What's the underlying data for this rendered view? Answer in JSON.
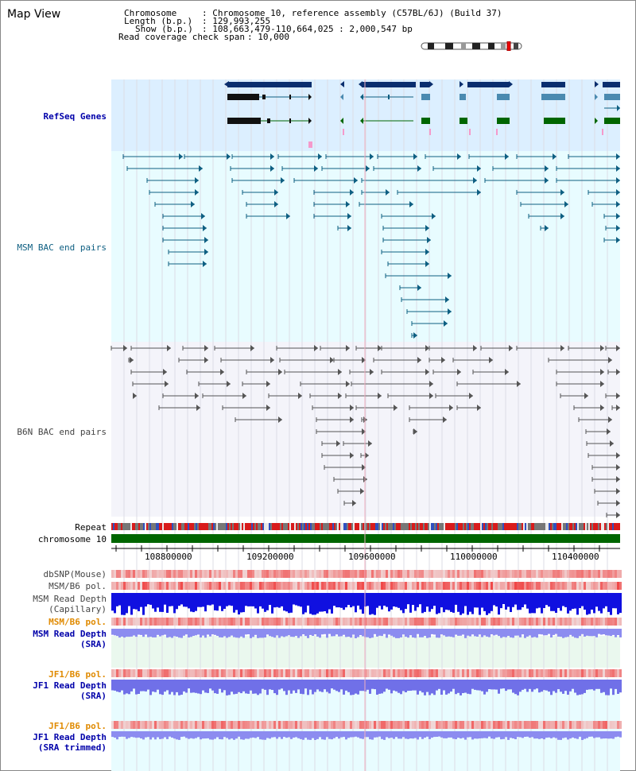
{
  "page": {
    "title": "Map View"
  },
  "info": {
    "chromosome_label": "Chromosome",
    "chromosome_value": ": Chromosome 10, reference assembly (C57BL/6J) (Build 37)",
    "length_label": "Length (b.p.)",
    "length_value": ": 129,993,255",
    "show_label": "Show (b.p.)",
    "show_value": ": 108,663,479-110,664,025 : 2,000,547 bp",
    "coverage_label": "Read coverage check span",
    "coverage_value": ": 10,000"
  },
  "tracks": {
    "refseq": "RefSeq Genes",
    "msm_bac": "MSM BAC end pairs",
    "b6n_bac": "B6N BAC end pairs",
    "repeat": "Repeat",
    "chromosome": "chromosome 10",
    "dbsnp": "dbSNP(Mouse)",
    "msm_b6_pol": "MSM/B6 pol.",
    "msm_read_depth_cap": "MSM Read Depth",
    "msm_read_depth_cap_sub": "(Capillary)",
    "msm_b6_pol2": "MSM/B6 pol.",
    "msm_read_depth_sra": "MSM Read Depth",
    "msm_read_depth_sra_sub": "(SRA)",
    "jf1_b6_pol": "JF1/B6 pol.",
    "jf1_read_depth": "JF1 Read Depth",
    "jf1_read_depth_sub": "(SRA)",
    "jf1_b6_pol2": "JF1/B6 pol.",
    "jf1_read_depth_trim": "JF1 Read Depth",
    "jf1_read_depth_trim_sub": "(SRA trimmed)"
  },
  "axis": {
    "ticks": [
      "108800000",
      "109200000",
      "109600000",
      "110000000",
      "110400000"
    ]
  },
  "colors": {
    "refseq_bg": "#dcefff",
    "msm_bg": "#e8fcff",
    "b6n_bg": "#f4f4fa",
    "chromosome_bar": "#006600",
    "read_depth_cap": "#1010e0",
    "read_depth_sra": "#8c8cf0",
    "snp_red": "#e83030"
  }
}
